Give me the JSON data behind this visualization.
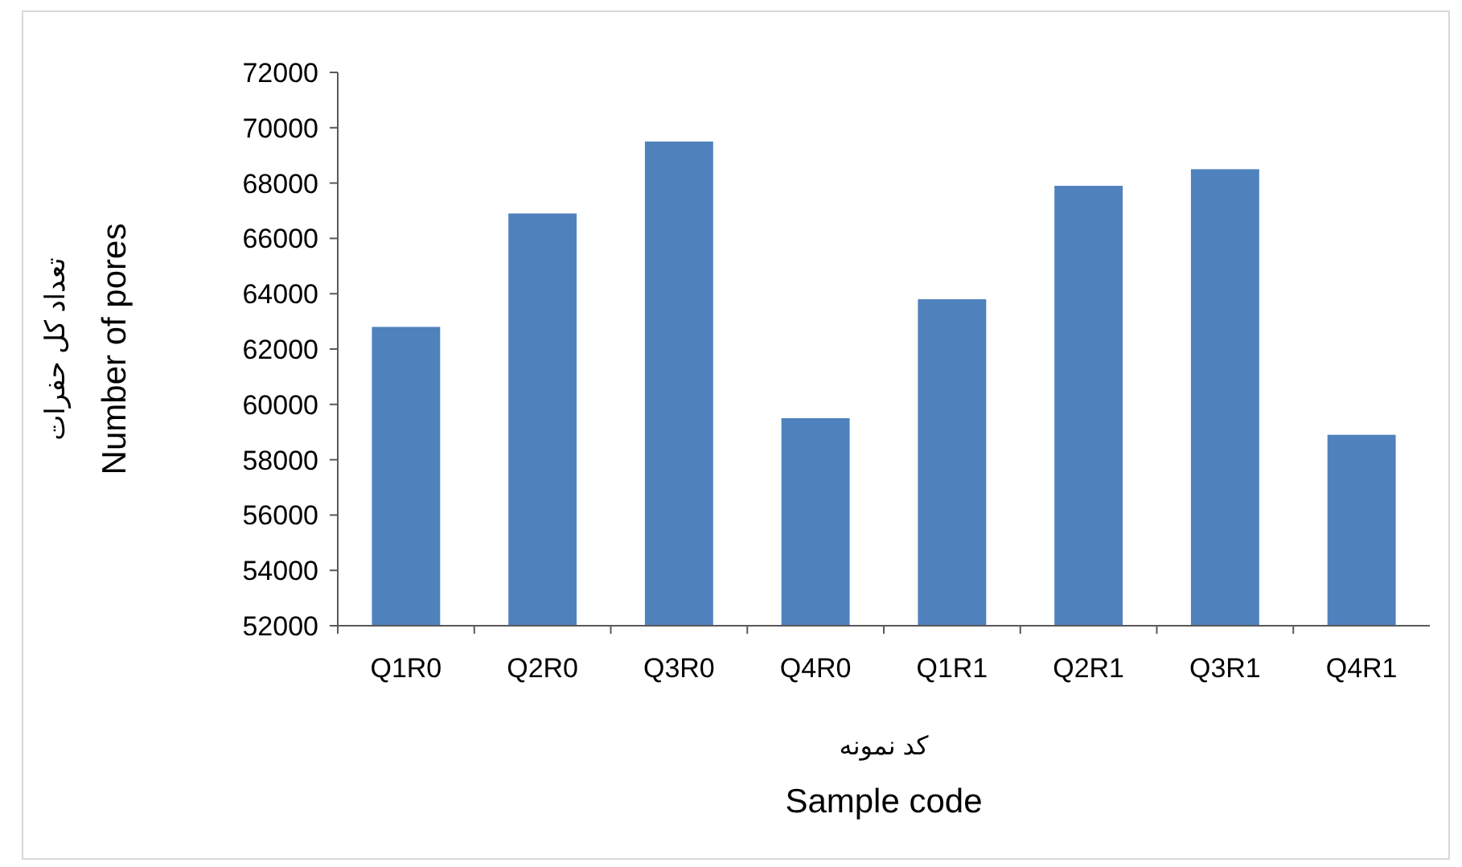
{
  "chart_data": {
    "type": "bar",
    "xlabel": "کد نمونه\nSample code",
    "ylabel": "تعداد کل حفرات\nNumber of pores",
    "categories": [
      "Q1R0",
      "Q2R0",
      "Q3R0",
      "Q4R0",
      "Q1R1",
      "Q2R1",
      "Q3R1",
      "Q4R1"
    ],
    "values": [
      62800,
      66900,
      69500,
      59500,
      63800,
      67900,
      68500,
      58900
    ],
    "color": "#4f81bd",
    "ylim": [
      52000,
      72000
    ],
    "yticks": [
      52000,
      54000,
      56000,
      58000,
      60000,
      62000,
      64000,
      66000,
      68000,
      70000,
      72000
    ],
    "grid": false
  }
}
